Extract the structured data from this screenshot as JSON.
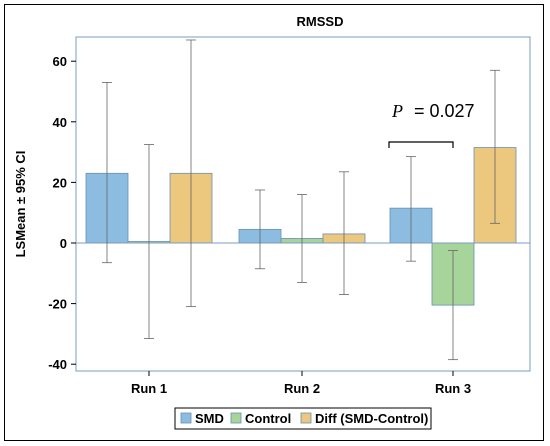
{
  "chart_data": {
    "type": "bar",
    "title": "RMSSD",
    "xlabel": "",
    "ylabel": "LSMean ± 95% CI",
    "ylim": [
      -45,
      68
    ],
    "yticks": [
      -40,
      -20,
      0,
      20,
      40,
      60
    ],
    "categories": [
      "Run 1",
      "Run 2",
      "Run 3"
    ],
    "series": [
      {
        "name": "SMD",
        "color": "#8cbde0",
        "values": [
          23,
          4.5,
          11.5
        ],
        "ci_low": [
          -6.5,
          -8.5,
          -6
        ],
        "ci_high": [
          53,
          17.5,
          28.5
        ]
      },
      {
        "name": "Control",
        "color": "#a6d49a",
        "values": [
          0.5,
          1.5,
          -20.5
        ],
        "ci_low": [
          -31.5,
          -13,
          -38.5
        ],
        "ci_high": [
          32.5,
          16,
          -2.5
        ]
      },
      {
        "name": "Diff (SMD-Control)",
        "color": "#ebc87d",
        "values": [
          23,
          3,
          31.5
        ],
        "ci_low": [
          -21,
          -17,
          6.5
        ],
        "ci_high": [
          67,
          23.5,
          57
        ]
      }
    ],
    "annotation": {
      "text_italic": "P",
      "text_rest": "= 0.027"
    },
    "legend_placement": "bottom",
    "grid": false
  }
}
